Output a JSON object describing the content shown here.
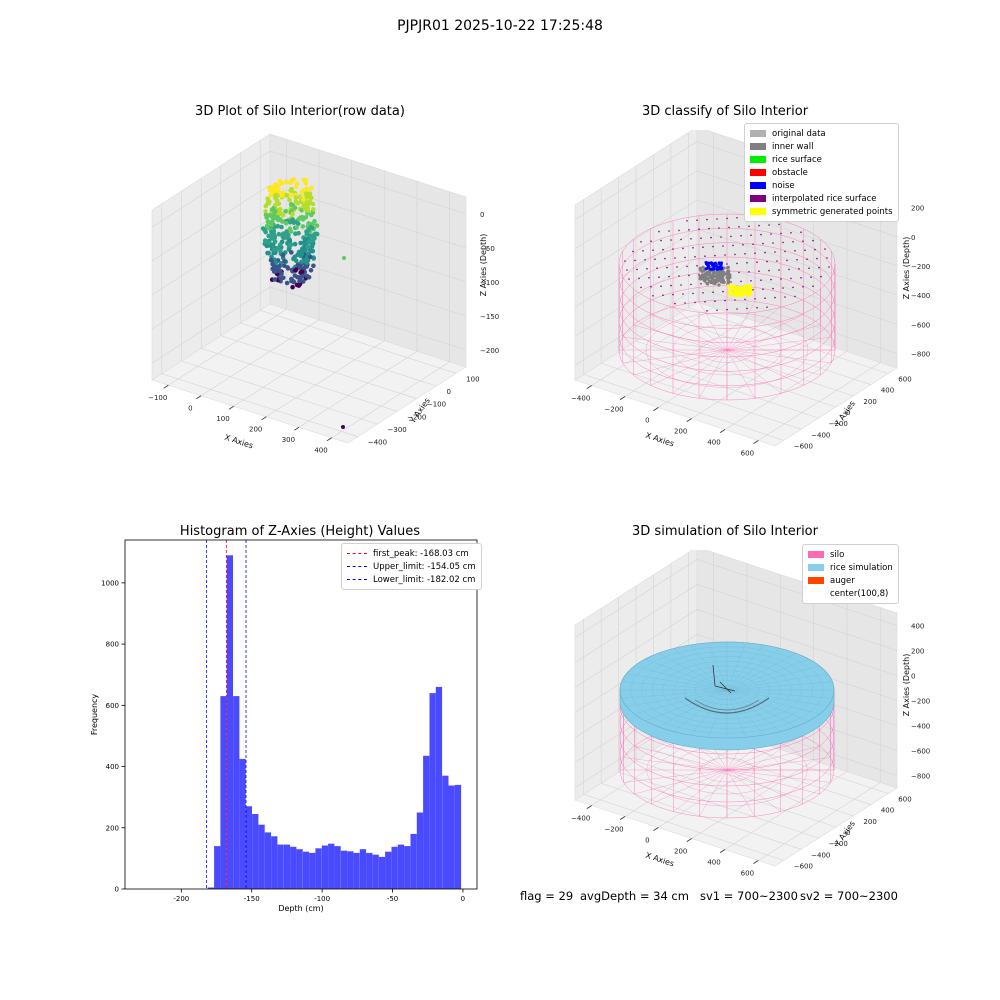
{
  "figure": {
    "title": "PJPJR01 2025-10-22 17:25:48",
    "footer": {
      "flag": "flag = 29",
      "avg_depth": "avgDepth = 34 cm",
      "sv1": "sv1 = 700~2300",
      "sv2": "sv2 = 700~2300"
    }
  },
  "chart_data": [
    {
      "type": "scatter",
      "title": "3D Plot of Silo Interior(row data)",
      "xlabel": "X Axies",
      "ylabel": "Y Axies",
      "zlabel": "Z Axies (Depth)",
      "x_ticks": [
        "−100",
        "0",
        "100",
        "200",
        "300",
        "400"
      ],
      "y_ticks": [
        "100",
        "0",
        "−100",
        "−200",
        "−300",
        "−400"
      ],
      "z_ticks": [
        "0",
        "−50",
        "−100",
        "−150",
        "−200"
      ],
      "colormap": "viridis",
      "grid": true
    },
    {
      "type": "scatter",
      "title": "3D classify of Silo Interior",
      "xlabel": "X Axies",
      "ylabel": "Y Axies",
      "zlabel": "Z Axies (Depth)",
      "x_ticks": [
        "−400",
        "−200",
        "0",
        "200",
        "400",
        "600"
      ],
      "y_ticks": [
        "600",
        "400",
        "200",
        "0",
        "−200",
        "−400",
        "−600"
      ],
      "z_ticks": [
        "200",
        "0",
        "−200",
        "−400",
        "−600",
        "−800"
      ],
      "legend_position": "top-right",
      "legend": [
        {
          "label": "original data",
          "color": "#b0b0b0"
        },
        {
          "label": "inner wall",
          "color": "#808080"
        },
        {
          "label": "rice surface",
          "color": "#00ee00"
        },
        {
          "label": "obstacle",
          "color": "#ff0000"
        },
        {
          "label": "noise",
          "color": "#0000ff"
        },
        {
          "label": "interpolated rice surface",
          "color": "#800080"
        },
        {
          "label": "symmetric generated points",
          "color": "#ffff00"
        }
      ],
      "colors": {
        "wireframe": "#ff69b4"
      },
      "grid": true
    },
    {
      "type": "bar",
      "title": "Histogram of Z-Axies (Height) Values",
      "xlabel": "Depth (cm)",
      "ylabel": "Frequency",
      "x_ticks": [
        -200,
        -150,
        -100,
        -50,
        0
      ],
      "y_ticks": [
        0,
        200,
        400,
        600,
        800,
        1000
      ],
      "xlim": [
        -240,
        10
      ],
      "ylim": [
        0,
        1140
      ],
      "bin_width": 4.5,
      "bins": [
        {
          "x": -179.0,
          "value": 5
        },
        {
          "x": -174.5,
          "value": 140
        },
        {
          "x": -170.0,
          "value": 630
        },
        {
          "x": -165.5,
          "value": 1090
        },
        {
          "x": -161.0,
          "value": 630
        },
        {
          "x": -156.5,
          "value": 425
        },
        {
          "x": -152.0,
          "value": 270
        },
        {
          "x": -147.5,
          "value": 245
        },
        {
          "x": -143.0,
          "value": 210
        },
        {
          "x": -138.5,
          "value": 185
        },
        {
          "x": -134.0,
          "value": 172
        },
        {
          "x": -129.5,
          "value": 145
        },
        {
          "x": -125.0,
          "value": 145
        },
        {
          "x": -120.5,
          "value": 138
        },
        {
          "x": -116.0,
          "value": 130
        },
        {
          "x": -111.5,
          "value": 122
        },
        {
          "x": -107.0,
          "value": 118
        },
        {
          "x": -102.5,
          "value": 133
        },
        {
          "x": -98.0,
          "value": 142
        },
        {
          "x": -93.5,
          "value": 148
        },
        {
          "x": -89.0,
          "value": 140
        },
        {
          "x": -84.5,
          "value": 125
        },
        {
          "x": -80.0,
          "value": 123
        },
        {
          "x": -75.5,
          "value": 118
        },
        {
          "x": -71.0,
          "value": 130
        },
        {
          "x": -66.5,
          "value": 118
        },
        {
          "x": -62.0,
          "value": 112
        },
        {
          "x": -57.5,
          "value": 105
        },
        {
          "x": -53.0,
          "value": 122
        },
        {
          "x": -48.5,
          "value": 138
        },
        {
          "x": -44.0,
          "value": 145
        },
        {
          "x": -39.5,
          "value": 140
        },
        {
          "x": -35.0,
          "value": 180
        },
        {
          "x": -30.5,
          "value": 250
        },
        {
          "x": -26.0,
          "value": 435
        },
        {
          "x": -21.5,
          "value": 640
        },
        {
          "x": -17.0,
          "value": 660
        },
        {
          "x": -12.5,
          "value": 370
        },
        {
          "x": -8.0,
          "value": 338
        },
        {
          "x": -3.5,
          "value": 340
        }
      ],
      "vlines": [
        {
          "label": "first_peak: -168.03 cm",
          "x": -168.03,
          "color": "#ff0000"
        },
        {
          "label": "Upper_limit: -154.05 cm",
          "x": -154.05,
          "color": "#0000ff"
        },
        {
          "label": "Lower_limit: -182.02 cm",
          "x": -182.02,
          "color": "#0000ff"
        }
      ],
      "legend_position": "top-right",
      "bar_color": "#4a4aff"
    },
    {
      "type": "scatter",
      "title": "3D simulation of Silo Interior",
      "xlabel": "X Axies",
      "ylabel": "Y Axies",
      "zlabel": "Z Axies (Depth)",
      "x_ticks": [
        "−400",
        "−200",
        "0",
        "200",
        "400",
        "600"
      ],
      "y_ticks": [
        "600",
        "400",
        "200",
        "0",
        "−200",
        "−400",
        "−600"
      ],
      "z_ticks": [
        "400",
        "200",
        "0",
        "−200",
        "−400",
        "−600",
        "−800"
      ],
      "legend_position": "top-right",
      "legend": [
        {
          "label": "silo",
          "color": "#ff69b4"
        },
        {
          "label": "rice simulation",
          "color": "#87ceeb"
        },
        {
          "label": "auger",
          "color": "#ff4500"
        },
        {
          "label": "center(100,8)",
          "color": "#ffffff"
        }
      ],
      "grid": true
    }
  ]
}
